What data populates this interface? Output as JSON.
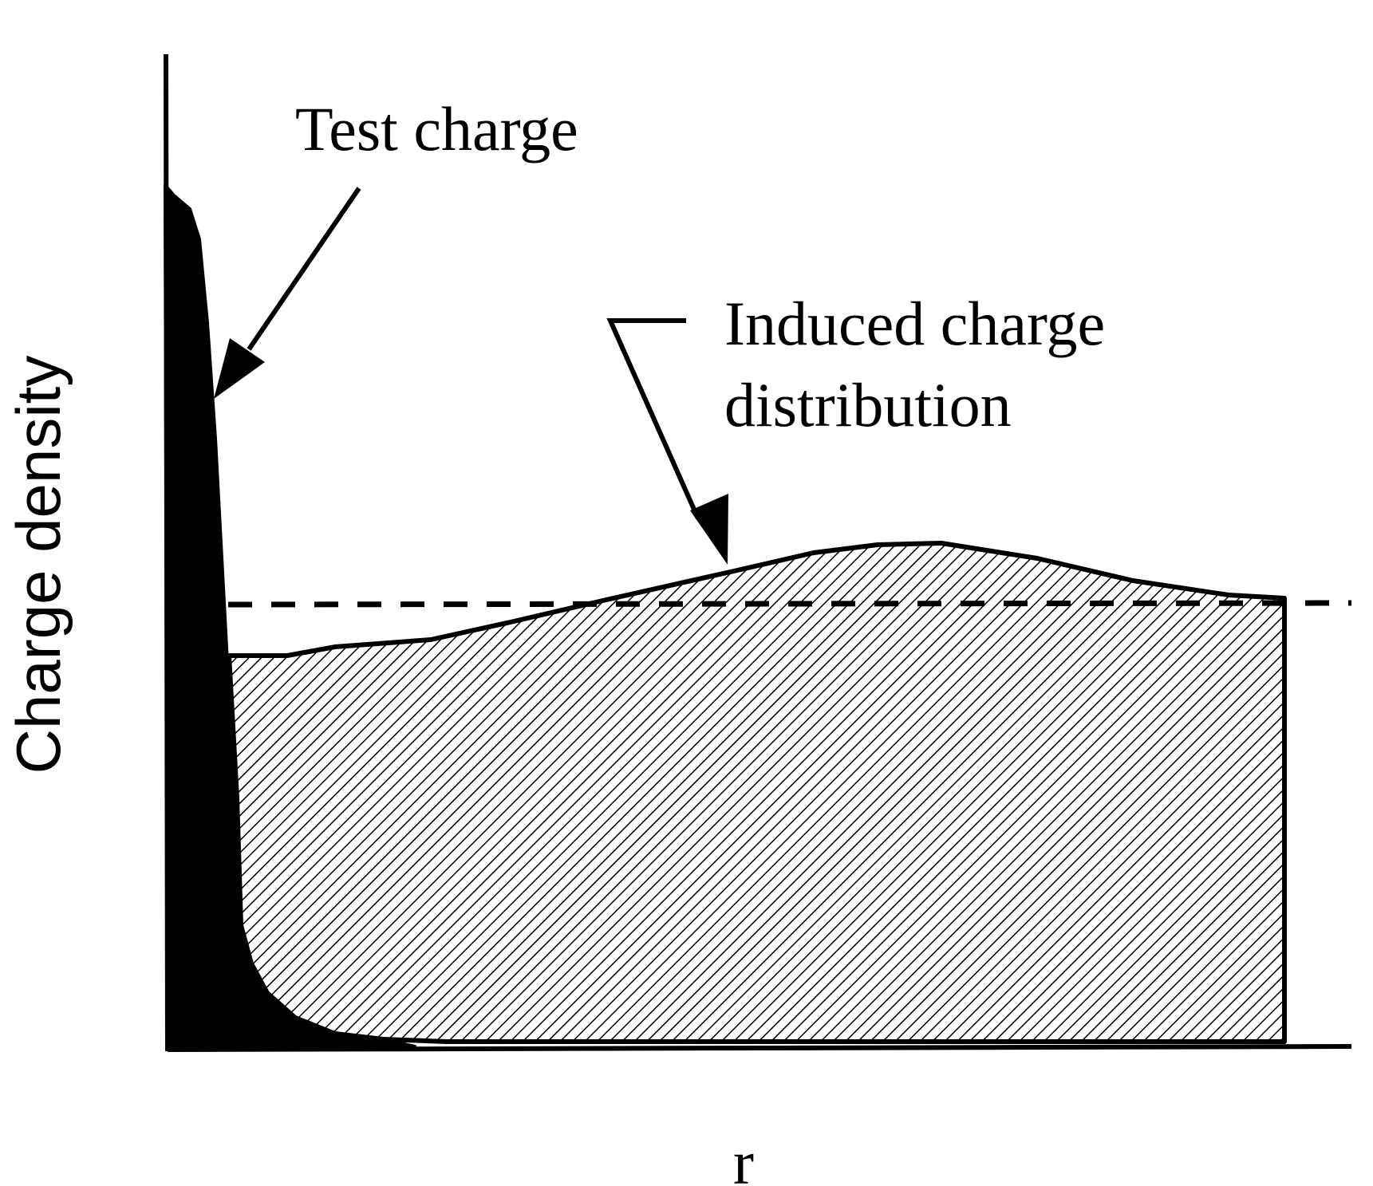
{
  "diagram": {
    "y_axis_label": "Charge density",
    "x_axis_label": "r",
    "annotations": {
      "test_charge": "Test charge",
      "induced_line1": "Induced charge",
      "induced_line2": "distribution"
    },
    "colors": {
      "ink": "#000000",
      "background": "#ffffff"
    }
  }
}
